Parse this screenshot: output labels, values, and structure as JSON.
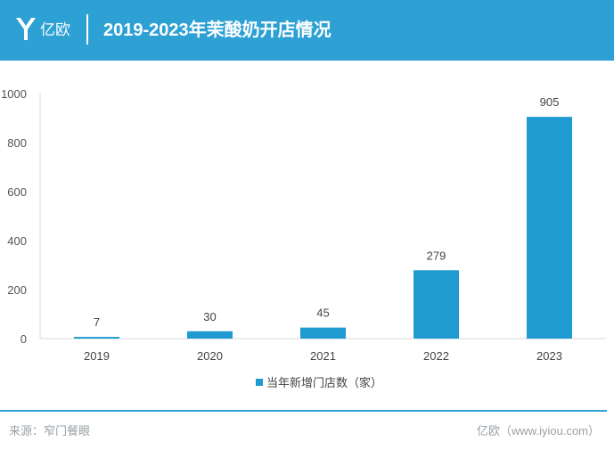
{
  "header": {
    "logo_text": "亿欧",
    "title": "2019-2023年茉酸奶开店情况"
  },
  "chart_data": {
    "type": "bar",
    "title": "2019-2023年茉酸奶开店情况",
    "categories": [
      "2019",
      "2020",
      "2021",
      "2022",
      "2023"
    ],
    "series": [
      {
        "name": "当年新增门店数（家）",
        "values": [
          7,
          30,
          45,
          279,
          905
        ]
      }
    ],
    "ylim": [
      0,
      1000
    ],
    "yticks": [
      0,
      200,
      400,
      600,
      800,
      1000
    ],
    "grid": false,
    "legend": "bottom",
    "bar_color": "#1f9bd1",
    "data_labels": true
  },
  "footer": {
    "source": "来源：窄门餐眼",
    "brand": "亿欧（www.iyiou.com）"
  }
}
